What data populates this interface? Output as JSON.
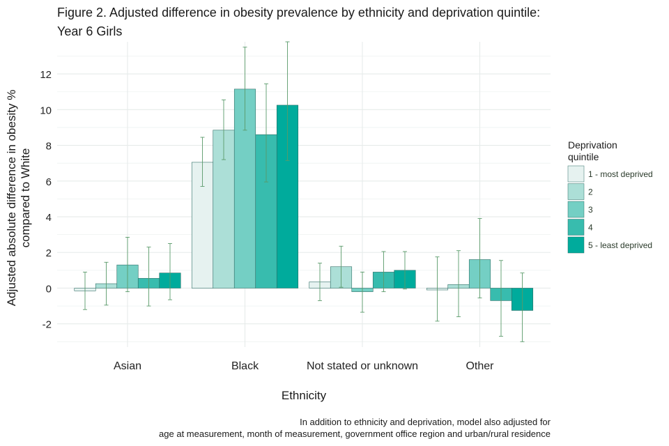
{
  "title_line1": "Figure 2. Adjusted difference in obesity prevalence by ethnicity and deprivation quintile:",
  "title_line2": "Year 6 Girls",
  "caption_line1": "In addition to ethnicity and deprivation, model also adjusted for",
  "caption_line2": "age at measurement, month of measurement, government office region and urban/rural residence",
  "legend": {
    "title_line1": "Deprivation",
    "title_line2": "quintile"
  },
  "colors": {
    "q1": "#e6f2f0",
    "q2": "#acdfd7",
    "q3": "#74cfc4",
    "q4": "#38bcae",
    "q5": "#00ab9c",
    "errorbar": "#5a9a6a",
    "grid": "#e6ebea"
  },
  "chart_data": {
    "type": "bar",
    "title": "Figure 2. Adjusted difference in obesity prevalence by ethnicity and deprivation quintile: Year 6 Girls",
    "xlabel": "Ethnicity",
    "ylabel_line1": "Adjusted absolute difference in obesity %",
    "ylabel_line2": "compared to White",
    "ylim": [
      -3.3,
      13.8
    ],
    "yticks": [
      12,
      10,
      8,
      6,
      4,
      2,
      0,
      -2
    ],
    "categories": [
      "Asian",
      "Black",
      "Not stated or unknown",
      "Other"
    ],
    "series": [
      {
        "name": "1 - most deprived",
        "values": [
          -0.15,
          7.05,
          0.35,
          -0.1
        ],
        "lower": [
          -1.2,
          5.7,
          -0.7,
          -1.85
        ],
        "upper": [
          0.9,
          8.45,
          1.4,
          1.75
        ]
      },
      {
        "name": "2",
        "values": [
          0.25,
          8.85,
          1.2,
          0.2
        ],
        "lower": [
          -0.95,
          7.2,
          0.05,
          -1.6
        ],
        "upper": [
          1.45,
          10.55,
          2.35,
          2.1
        ]
      },
      {
        "name": "3",
        "values": [
          1.3,
          11.15,
          -0.2,
          1.6
        ],
        "lower": [
          -0.2,
          8.85,
          -1.35,
          -0.55
        ],
        "upper": [
          2.85,
          13.5,
          0.9,
          3.9
        ]
      },
      {
        "name": "4",
        "values": [
          0.55,
          8.6,
          0.9,
          -0.7
        ],
        "lower": [
          -1.0,
          5.95,
          -0.2,
          -2.7
        ],
        "upper": [
          2.3,
          11.45,
          2.05,
          1.55
        ]
      },
      {
        "name": "5 - least deprived",
        "values": [
          0.85,
          10.25,
          1.0,
          -1.25
        ],
        "lower": [
          -0.65,
          7.15,
          -0.05,
          -3.0
        ],
        "upper": [
          2.5,
          13.8,
          2.05,
          0.85
        ]
      }
    ],
    "legend_position": "right"
  }
}
